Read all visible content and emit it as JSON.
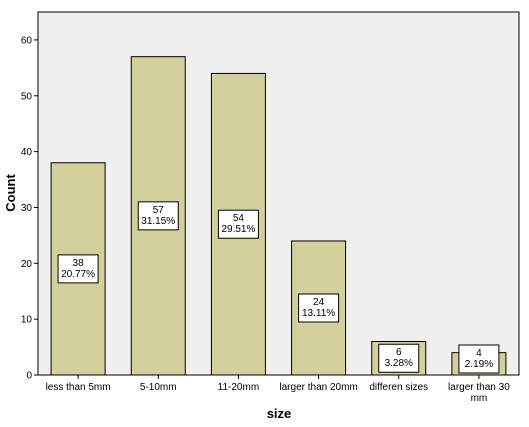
{
  "chart_data": {
    "type": "bar",
    "categories": [
      "less than 5mm",
      "5-10mm",
      "11-20mm",
      "larger than 20mm",
      "differen sizes",
      "larger than 30 mm"
    ],
    "values": [
      38,
      57,
      54,
      24,
      6,
      4
    ],
    "percentages": [
      "20.77%",
      "31.15%",
      "29.51%",
      "13.11%",
      "3.28%",
      "2.19%"
    ],
    "xlabel": "size",
    "ylabel": "Count",
    "ylim": [
      0,
      65
    ],
    "yticks": [
      0,
      10,
      20,
      30,
      40,
      50,
      60
    ],
    "grid": false,
    "colors": {
      "bar_fill": "#D4D09E",
      "bar_stroke": "#000000",
      "plot_bg": "#F0F0F0",
      "page_bg": "#FFFFFF"
    }
  }
}
